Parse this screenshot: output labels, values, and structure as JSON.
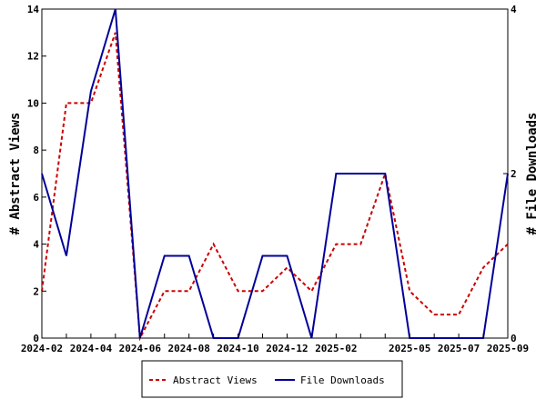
{
  "chart_data": {
    "type": "line",
    "x": [
      "2024-02",
      "2024-03",
      "2024-04",
      "2024-05",
      "2024-06",
      "2024-07",
      "2024-08",
      "2024-09",
      "2024-10",
      "2024-11",
      "2024-12",
      "2025-01",
      "2025-02",
      "2025-03",
      "2025-04",
      "2025-05",
      "2025-06",
      "2025-07",
      "2025-08",
      "2025-09"
    ],
    "x_tick_labels": [
      "2024-02",
      "2024-04",
      "2024-06",
      "2024-08",
      "2024-10",
      "2024-12",
      "2025-02",
      "2025-05",
      "2025-07",
      "2025-09"
    ],
    "series": [
      {
        "name": "Abstract Views",
        "axis": "left",
        "color": "#cc0000",
        "dash": "dashed",
        "values": [
          2,
          10,
          10,
          13,
          0,
          2,
          2,
          4,
          2,
          2,
          3,
          2,
          4,
          4,
          7,
          2,
          1,
          1,
          3,
          4
        ]
      },
      {
        "name": "File Downloads",
        "axis": "right",
        "color": "#000099",
        "dash": "solid",
        "values": [
          2,
          1,
          3,
          4,
          0,
          1,
          1,
          0,
          0,
          1,
          1,
          0,
          2,
          2,
          2,
          0,
          0,
          0,
          0,
          2
        ]
      }
    ],
    "ylabel": "# Abstract Views",
    "ylabel_right": "# File Downloads",
    "ylim": [
      0,
      14
    ],
    "yticks": [
      "0",
      "2",
      "4",
      "6",
      "8",
      "10",
      "12",
      "14"
    ],
    "ylim_right": [
      0,
      4
    ],
    "yticks_right": [
      "0",
      "2",
      "4"
    ],
    "grid": false,
    "legend_position": "bottom"
  }
}
